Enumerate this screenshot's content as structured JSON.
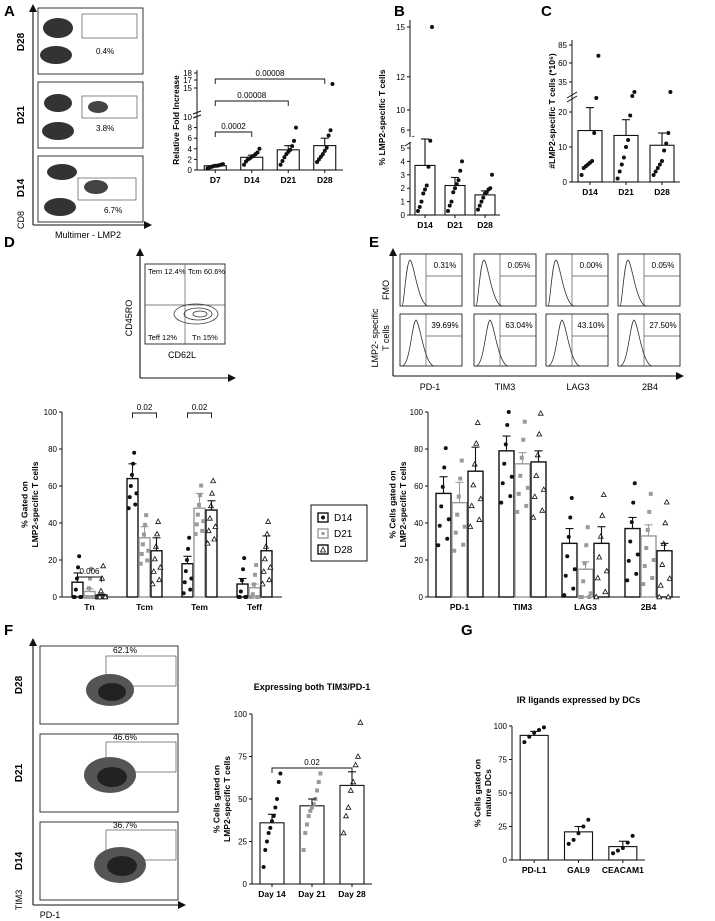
{
  "panels": {
    "A": {
      "letter": "A",
      "rows": [
        "D28",
        "D21",
        "D14"
      ],
      "gate_pcts": [
        "0.4%",
        "3.8%",
        "6.7%"
      ],
      "y_axis_label": "CD8",
      "x_axis_label": "Multimer - LMP2"
    },
    "B": {
      "letter": "B"
    },
    "C": {
      "letter": "C"
    },
    "D": {
      "letter": "D",
      "quadrants": [
        "Tem 12.4%",
        "Tcm 60.6%",
        "Teff 12%",
        "Tn 15%"
      ],
      "y_axis_label": "CD45RO",
      "x_axis_label": "CD62L"
    },
    "E": {
      "letter": "E",
      "row_labels": [
        "FMO",
        "LMP2- specific",
        "T cells"
      ],
      "markers": [
        "PD-1",
        "TIM3",
        "LAG3",
        "2B4"
      ],
      "fmo_pcts": [
        "0.31%",
        "0.05%",
        "0.00%",
        "0.05%"
      ],
      "lmp2_pcts": [
        "39.69%",
        "63.04%",
        "43.10%",
        "27.50%"
      ]
    },
    "F": {
      "letter": "F",
      "rows": [
        "D28",
        "D21",
        "D14"
      ],
      "gate_pcts": [
        "62.1%",
        "46.6%",
        "36.7%"
      ],
      "y_axis_label": "TIM3",
      "x_axis_label": "PD-1"
    },
    "G": {
      "letter": "G"
    }
  },
  "legend": {
    "entries": [
      "D14",
      "D21",
      "D28"
    ]
  },
  "chart_data": [
    {
      "id": "A",
      "type": "bar",
      "categories": [
        "D7",
        "D14",
        "D21",
        "D28"
      ],
      "values": [
        0.8,
        2.4,
        3.8,
        4.6
      ],
      "errors": [
        0.1,
        0.4,
        0.8,
        1.4
      ],
      "points": [
        [
          0.3,
          0.5,
          0.6,
          0.7,
          0.8,
          0.8,
          0.9,
          1.0,
          1.1
        ],
        [
          1.0,
          1.6,
          2.0,
          2.2,
          2.5,
          2.7,
          3.0,
          3.3,
          4.0
        ],
        [
          1.0,
          1.7,
          2.4,
          3.0,
          3.4,
          3.8,
          4.5,
          5.5,
          8.0
        ],
        [
          1.5,
          2.0,
          2.5,
          3.0,
          3.6,
          4.2,
          6.5,
          7.5,
          16.0
        ]
      ],
      "ylabel": "Relative Fold Increase",
      "yticks": [
        0,
        2,
        4,
        6,
        8,
        10,
        15,
        17,
        18
      ],
      "brackets": [
        {
          "from": "D7",
          "to": "D14",
          "label": "0.0002"
        },
        {
          "from": "D7",
          "to": "D21",
          "label": "0.00008"
        },
        {
          "from": "D7",
          "to": "D28",
          "label": "0.00008"
        }
      ]
    },
    {
      "id": "B",
      "type": "bar",
      "categories": [
        "D14",
        "D21",
        "D28"
      ],
      "values": [
        3.7,
        2.2,
        1.5
      ],
      "errors": [
        1.8,
        0.6,
        0.3
      ],
      "points": [
        [
          0.3,
          0.6,
          1.0,
          1.6,
          1.9,
          2.2,
          3.6,
          5.4,
          15.0
        ],
        [
          0.3,
          0.7,
          1.0,
          1.7,
          2.0,
          2.3,
          2.6,
          3.3,
          4.0
        ],
        [
          0.4,
          0.7,
          1.0,
          1.3,
          1.6,
          1.7,
          1.9,
          2.0,
          3.0
        ]
      ],
      "ylabel": "% LMP2-specific T cells",
      "yticks": [
        0,
        1,
        2,
        3,
        4,
        5,
        6,
        10,
        12,
        15
      ]
    },
    {
      "id": "C",
      "type": "bar",
      "categories": [
        "D14",
        "D21",
        "D28"
      ],
      "values": [
        14.7,
        13.3,
        10.5
      ],
      "errors": [
        7.5,
        4.5,
        3.5
      ],
      "points": [
        [
          2,
          4,
          4.5,
          5,
          5.5,
          6,
          14,
          27,
          70
        ],
        [
          1,
          3,
          5,
          7,
          10,
          12,
          19,
          28,
          30
        ],
        [
          2,
          3,
          4,
          5,
          6,
          9,
          11,
          14,
          30
        ]
      ],
      "ylabel": "#LMP2-specific T cells (*10⁶)",
      "yticks": [
        0,
        10,
        20,
        35,
        60,
        85
      ]
    },
    {
      "id": "D",
      "type": "bar",
      "categories": [
        "Tn",
        "Tcm",
        "Tem",
        "Teff"
      ],
      "series": [
        {
          "name": "D14",
          "values": [
            8,
            64,
            18,
            7
          ],
          "errors": [
            5,
            8,
            4,
            3
          ]
        },
        {
          "name": "D21",
          "values": [
            3,
            32,
            48,
            5
          ],
          "errors": [
            1.5,
            6,
            8,
            2
          ]
        },
        {
          "name": "D28",
          "values": [
            1,
            25,
            47,
            25
          ],
          "errors": [
            0.5,
            7,
            5,
            8
          ]
        }
      ],
      "ylabel": "% Gated on LMP2-specific T cells",
      "ylim": [
        0,
        100
      ],
      "yticks": [
        0,
        20,
        40,
        60,
        80,
        100
      ],
      "brackets": [
        {
          "category": "Tn",
          "label": "0.006"
        },
        {
          "category": "Tcm",
          "label": "0.02"
        },
        {
          "category": "Tem",
          "label": "0.02"
        }
      ]
    },
    {
      "id": "E",
      "type": "bar",
      "categories": [
        "PD-1",
        "TIM3",
        "LAG3",
        "2B4"
      ],
      "series": [
        {
          "name": "D14",
          "values": [
            56,
            79,
            29,
            37
          ],
          "errors": [
            9,
            8,
            8,
            6
          ]
        },
        {
          "name": "D21",
          "values": [
            51,
            72,
            15,
            33
          ],
          "errors": [
            11,
            6,
            4,
            6
          ]
        },
        {
          "name": "D28",
          "values": [
            68,
            73,
            29,
            25
          ],
          "errors": [
            13,
            6,
            9,
            4
          ]
        }
      ],
      "ylabel": "% Cells gated on LMP2-specific T cells",
      "ylim": [
        0,
        100
      ],
      "yticks": [
        0,
        20,
        40,
        60,
        80,
        100
      ]
    },
    {
      "id": "F",
      "type": "bar",
      "title": "Expressing both TIM3/PD-1",
      "categories": [
        "Day 14",
        "Day 21",
        "Day 28"
      ],
      "values": [
        36,
        46,
        58
      ],
      "errors": [
        5,
        4,
        8
      ],
      "points": [
        [
          10,
          20,
          25,
          30,
          33,
          37,
          40,
          45,
          50,
          60,
          65
        ],
        [
          20,
          30,
          35,
          40,
          43,
          45,
          47,
          50,
          55,
          60,
          65
        ],
        [
          30,
          40,
          45,
          55,
          60,
          70,
          75,
          95
        ]
      ],
      "ylabel": "% Cells gated on LMP2-specific T cells",
      "ylim": [
        0,
        100
      ],
      "yticks": [
        0,
        25,
        50,
        75,
        100
      ],
      "brackets": [
        {
          "from": "Day 14",
          "to": "Day 28",
          "label": "0.02"
        }
      ]
    },
    {
      "id": "G",
      "type": "bar",
      "title": "IR ligands expressed by DCs",
      "categories": [
        "PD-L1",
        "GAL9",
        "CEACAM1"
      ],
      "values": [
        93,
        21,
        10
      ],
      "errors": [
        3,
        4,
        4
      ],
      "points": [
        [
          88,
          92,
          95,
          97,
          99
        ],
        [
          12,
          15,
          20,
          25,
          30
        ],
        [
          5,
          7,
          9,
          13,
          18
        ]
      ],
      "ylabel": "% Cells gated on mature DCs",
      "ylim": [
        0,
        100
      ],
      "yticks": [
        0,
        25,
        50,
        75,
        100
      ]
    }
  ]
}
